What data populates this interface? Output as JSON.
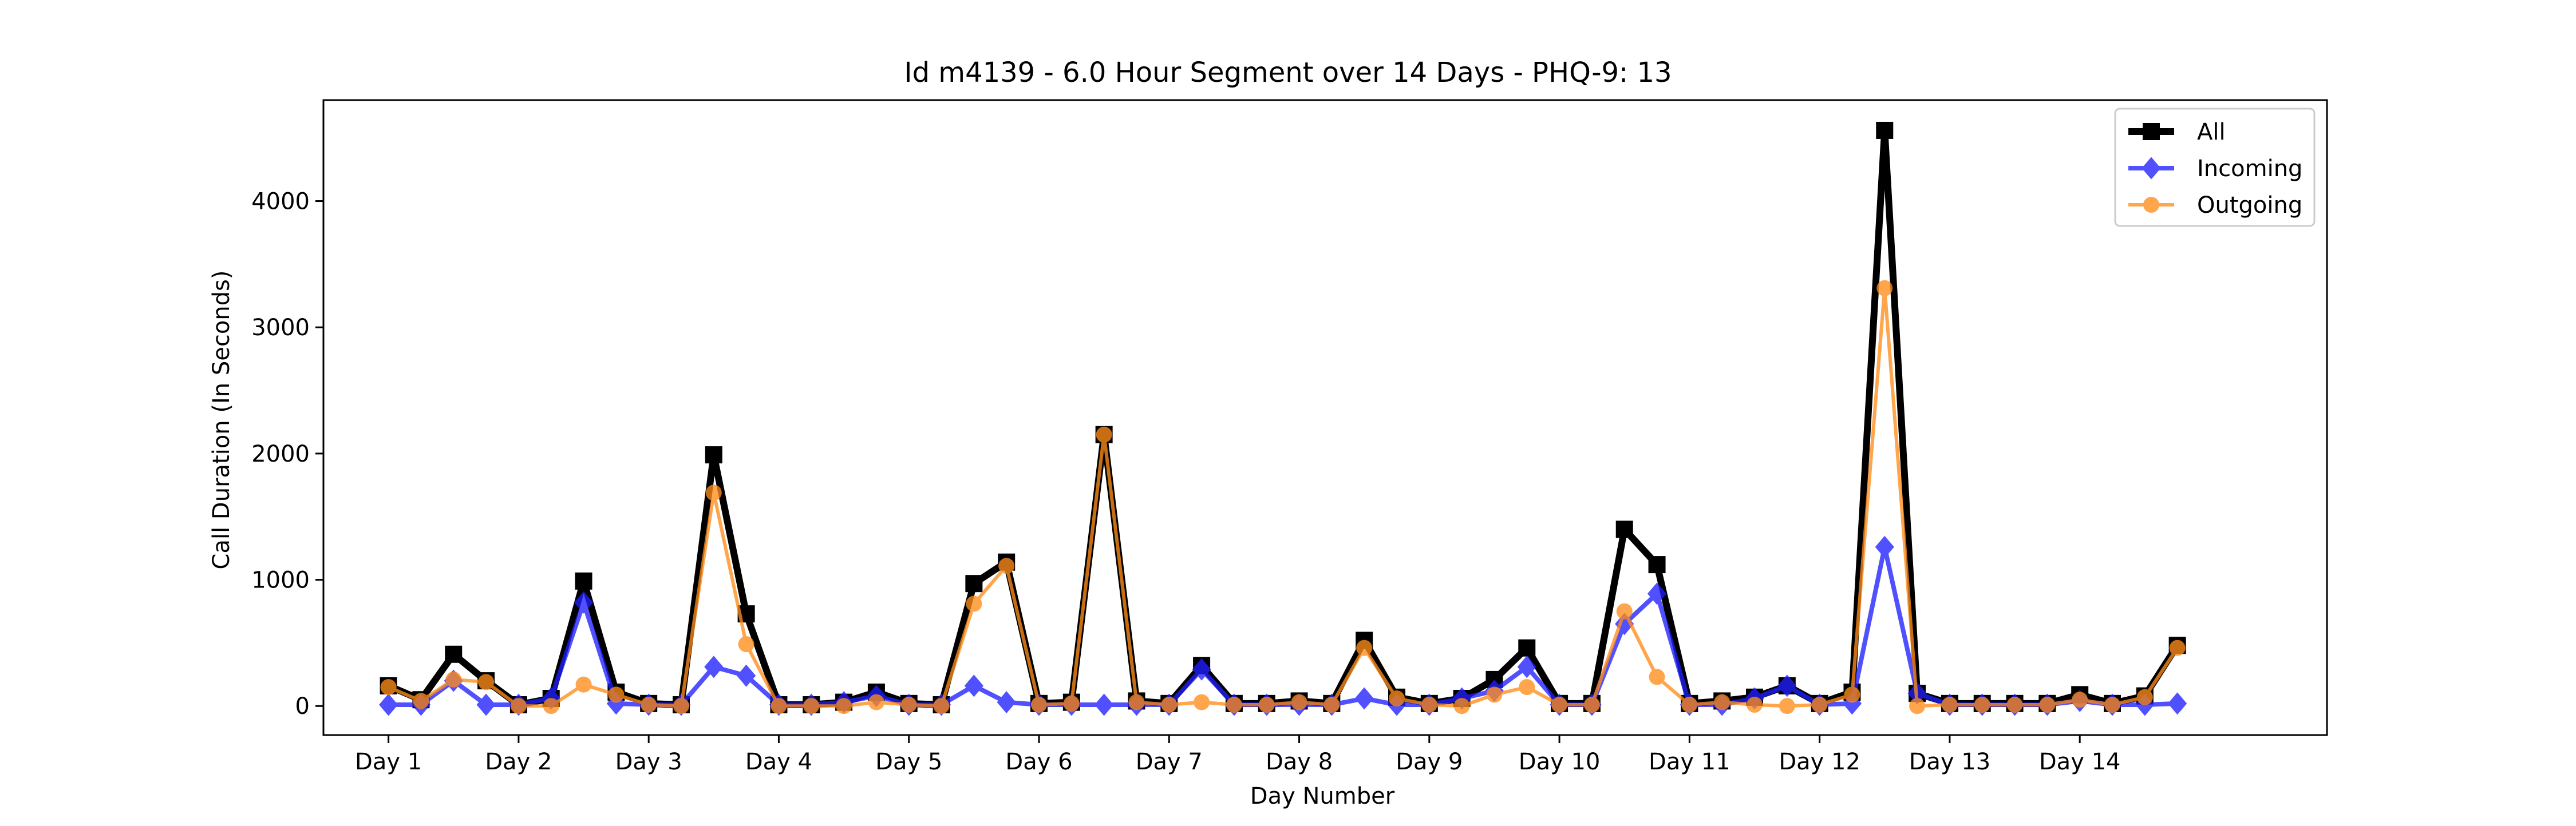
{
  "chart_data": {
    "type": "line",
    "title": "Id m4139 - 6.0 Hour Segment over 14 Days - PHQ-9: 13",
    "xlabel": "Day Number",
    "ylabel": "Call Duration (In Seconds)",
    "ylim": [
      -230,
      4800
    ],
    "xlim": [
      -0.5,
      14.9
    ],
    "yticks": [
      0,
      1000,
      2000,
      3000,
      4000
    ],
    "xticks": [
      "Day 1",
      "Day 2",
      "Day 3",
      "Day 4",
      "Day 5",
      "Day 6",
      "Day 7",
      "Day 8",
      "Day 9",
      "Day 10",
      "Day 11",
      "Day 12",
      "Day 13",
      "Day 14"
    ],
    "grid": false,
    "legend_position": "top-right",
    "x": [
      0.0,
      0.25,
      0.5,
      0.75,
      1.0,
      1.25,
      1.5,
      1.75,
      2.0,
      2.25,
      2.5,
      2.75,
      3.0,
      3.25,
      3.5,
      3.75,
      4.0,
      4.25,
      4.5,
      4.75,
      5.0,
      5.25,
      5.5,
      5.75,
      6.0,
      6.25,
      6.5,
      6.75,
      7.0,
      7.25,
      7.5,
      7.75,
      8.0,
      8.25,
      8.5,
      8.75,
      9.0,
      9.25,
      9.5,
      9.75,
      10.0,
      10.25,
      10.5,
      10.75,
      11.0,
      11.25,
      11.5,
      11.75,
      12.0,
      12.25,
      12.5,
      12.75,
      13.0,
      13.25,
      13.5,
      13.75
    ],
    "series": [
      {
        "name": "All",
        "color": "#000000",
        "marker": "square",
        "values": [
          160,
          50,
          410,
          200,
          10,
          60,
          990,
          110,
          20,
          10,
          1990,
          730,
          10,
          10,
          30,
          110,
          20,
          10,
          970,
          1140,
          20,
          30,
          2150,
          40,
          20,
          320,
          20,
          20,
          40,
          20,
          520,
          70,
          20,
          60,
          210,
          460,
          20,
          20,
          1400,
          1120,
          20,
          40,
          70,
          160,
          20,
          110,
          4560,
          100,
          20,
          20,
          20,
          20,
          90,
          20,
          80,
          480
        ]
      },
      {
        "name": "Incoming",
        "color": "#1f1fff",
        "marker": "diamond",
        "values": [
          10,
          10,
          200,
          10,
          10,
          60,
          820,
          20,
          10,
          10,
          310,
          240,
          10,
          10,
          30,
          80,
          10,
          10,
          160,
          30,
          10,
          10,
          10,
          10,
          10,
          290,
          10,
          10,
          10,
          10,
          60,
          10,
          10,
          60,
          120,
          310,
          10,
          10,
          650,
          890,
          10,
          10,
          60,
          160,
          10,
          20,
          1260,
          100,
          10,
          10,
          10,
          10,
          40,
          10,
          10,
          20
        ]
      },
      {
        "name": "Outgoing",
        "color": "#ff8c1a",
        "marker": "circle",
        "values": [
          150,
          40,
          210,
          190,
          0,
          0,
          170,
          90,
          10,
          0,
          1690,
          490,
          0,
          0,
          0,
          30,
          10,
          0,
          810,
          1110,
          10,
          20,
          2150,
          30,
          10,
          30,
          10,
          10,
          30,
          10,
          460,
          60,
          10,
          0,
          90,
          150,
          10,
          10,
          750,
          230,
          10,
          30,
          10,
          0,
          10,
          90,
          3310,
          0,
          10,
          10,
          10,
          10,
          50,
          10,
          70,
          460
        ]
      }
    ]
  }
}
